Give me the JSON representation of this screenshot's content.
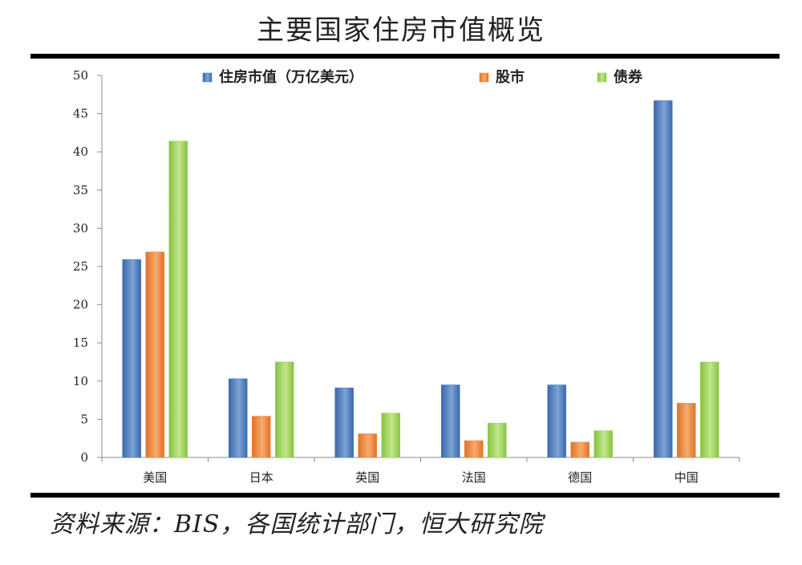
{
  "page": {
    "title": "主要国家住房市值概览",
    "source": "资料来源：BIS，各国统计部门，恒大研究院"
  },
  "colors": {
    "series_1": "#4f7fbf",
    "series_2": "#ef8a3a",
    "series_3": "#9fd45a",
    "axis": "#8c8c8c",
    "rule": "#000000"
  },
  "chart_data": {
    "type": "bar",
    "title": "",
    "xlabel": "",
    "ylabel": "",
    "ylim": [
      0,
      50
    ],
    "yticks": [
      0,
      5,
      10,
      15,
      20,
      25,
      30,
      35,
      40,
      45,
      50
    ],
    "grid": false,
    "legend_position": "top",
    "categories": [
      "美国",
      "日本",
      "英国",
      "法国",
      "德国",
      "中国"
    ],
    "series": [
      {
        "name": "住房市值（万亿美元）",
        "values": [
          25.9,
          10.3,
          9.1,
          9.5,
          9.5,
          46.7
        ]
      },
      {
        "name": "股市",
        "values": [
          26.9,
          5.4,
          3.1,
          2.2,
          2.0,
          7.1
        ]
      },
      {
        "name": "债券",
        "values": [
          41.4,
          12.5,
          5.8,
          4.5,
          3.5,
          12.5
        ]
      }
    ]
  }
}
